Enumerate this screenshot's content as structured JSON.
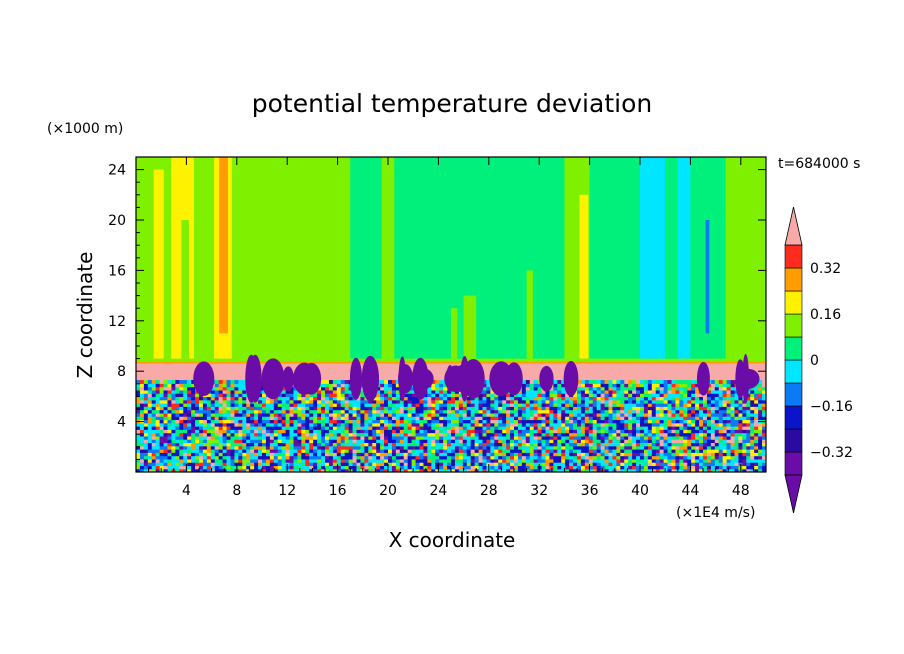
{
  "chart_data": {
    "type": "heatmap",
    "title": "potential temperature deviation",
    "xlabel": "X coordinate",
    "ylabel": "Z coordinate",
    "x_unit": "(×1E4 m/s)",
    "y_unit": "(×1000 m)",
    "time_label": "t=684000 s",
    "xlim": [
      0,
      50
    ],
    "ylim": [
      0,
      25
    ],
    "x_ticks": [
      4,
      8,
      12,
      16,
      20,
      24,
      28,
      32,
      36,
      40,
      44,
      48
    ],
    "y_ticks": [
      4,
      8,
      12,
      16,
      20,
      24
    ],
    "colorbar": {
      "levels": [
        -0.4,
        -0.32,
        -0.24,
        -0.16,
        -0.08,
        0,
        0.08,
        0.16,
        0.24,
        0.32,
        0.4
      ],
      "labels": [
        {
          "value": 0.32,
          "text": "0.32"
        },
        {
          "value": 0.16,
          "text": "0.16"
        },
        {
          "value": 0,
          "text": "0"
        },
        {
          "value": -0.16,
          "text": "−0.16"
        },
        {
          "value": -0.32,
          "text": "−0.32"
        }
      ],
      "colors": [
        "#6a0da8",
        "#2a0aa0",
        "#0a14c8",
        "#0a7af5",
        "#00e6ff",
        "#00f07c",
        "#7ef000",
        "#fff200",
        "#ff9d00",
        "#ff2a1e",
        "#f8aaa8"
      ]
    }
  }
}
